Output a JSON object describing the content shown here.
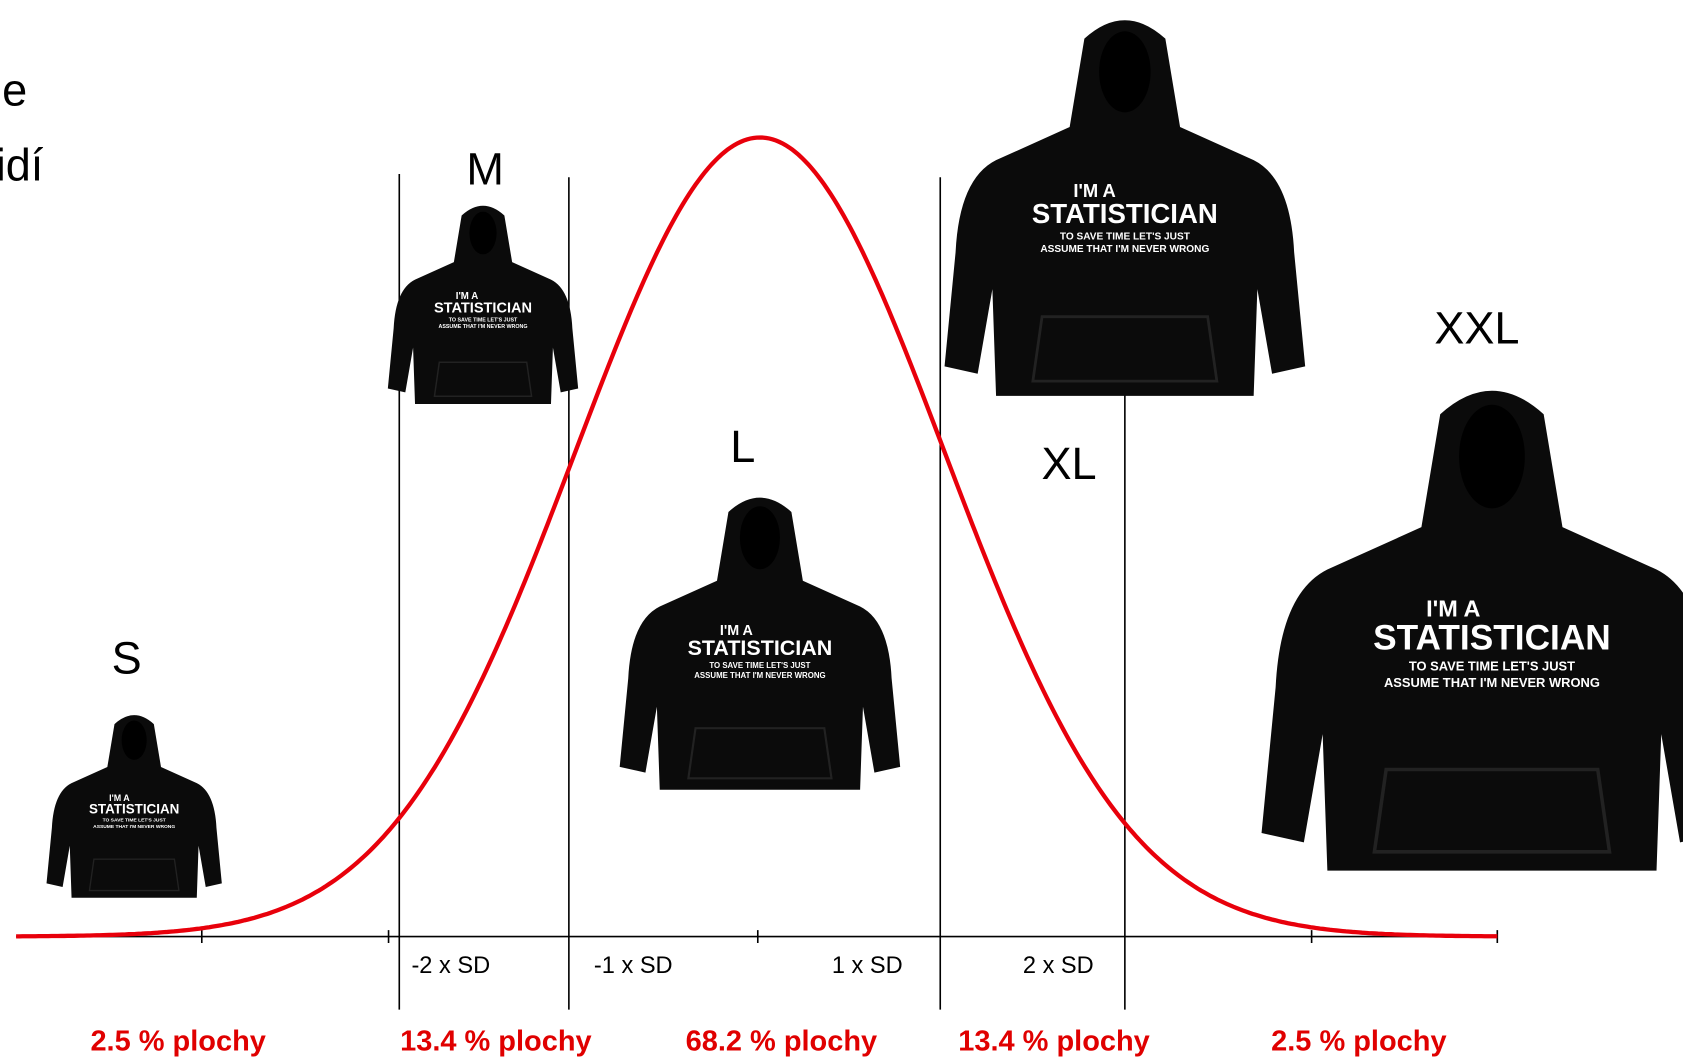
{
  "fragments": [
    "e",
    "idí"
  ],
  "sizes": [
    "S",
    "M",
    "L",
    "XL",
    "XXL"
  ],
  "sd_labels": [
    "-2 x SD",
    "-1 x SD",
    "1 x SD",
    "2 x SD"
  ],
  "area_labels": [
    "2.5 % plochy",
    "13.4 % plochy",
    "68.2 % plochy",
    "13.4 % plochy",
    "2.5 % plochy"
  ],
  "hoodie_print": {
    "line1": "I'M A",
    "line2": "STATISTICIAN",
    "line3": "TO SAVE TIME LET'S JUST",
    "line4": "ASSUME THAT I'M NEVER WRONG"
  }
}
